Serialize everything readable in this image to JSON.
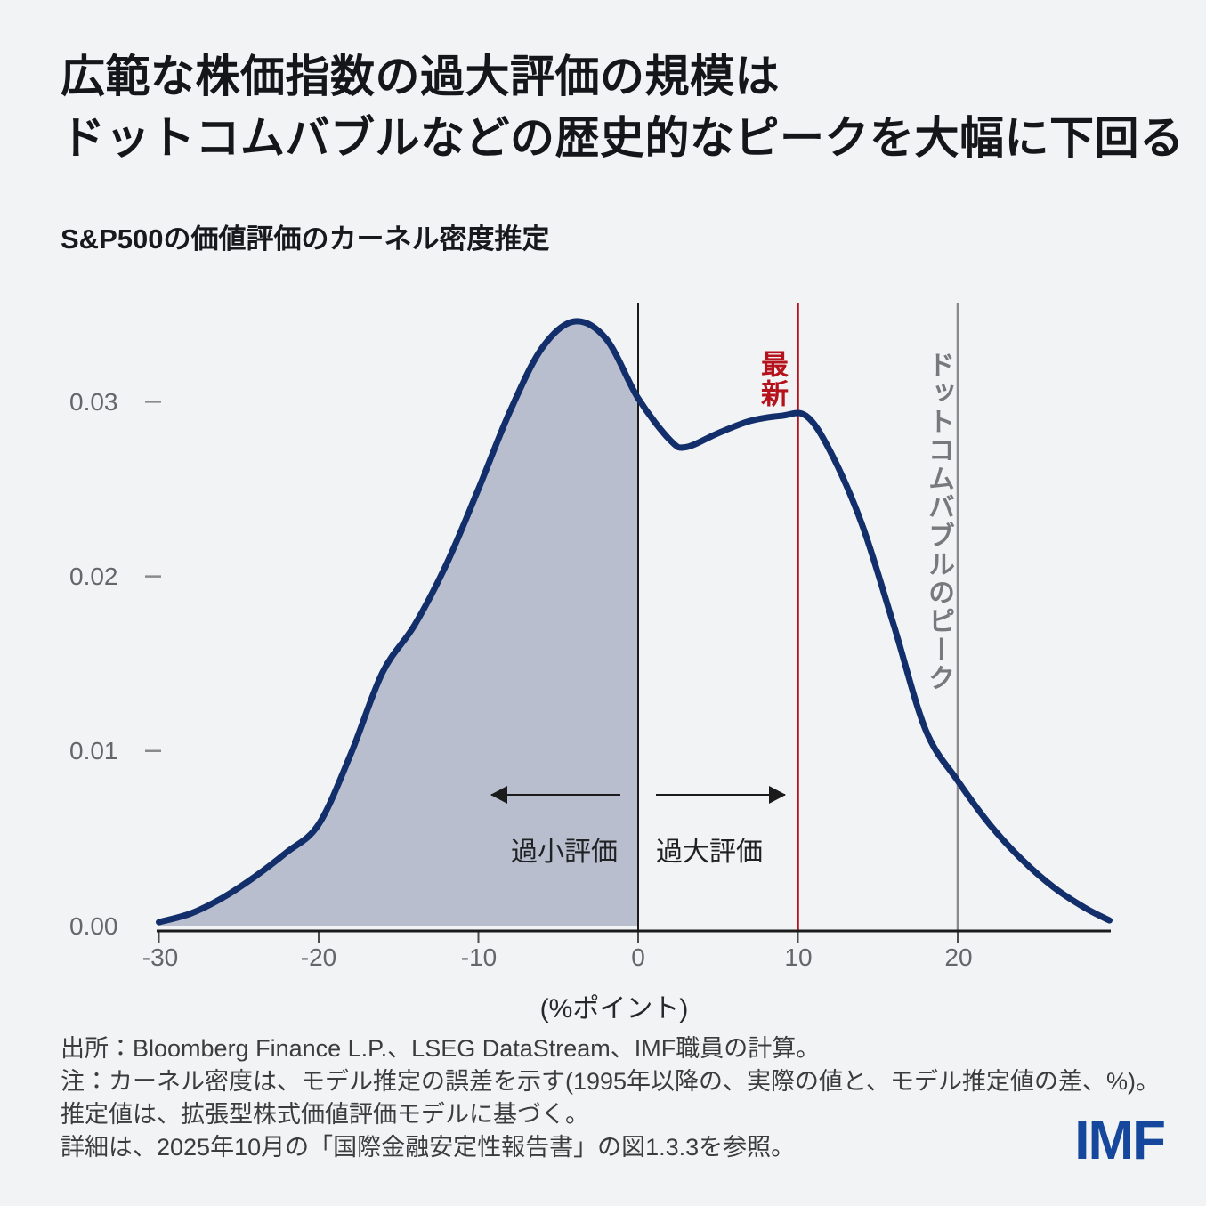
{
  "header": {
    "title_line1": "広範な株価指数の過大評価の規模は",
    "title_line2": "ドットコムバブルなどの歴史的なピークを大幅に下回る",
    "subtitle": "S&P500の価値評価のカーネル密度推定"
  },
  "chart_data": {
    "type": "area",
    "title": "S&P500の価値評価のカーネル密度推定",
    "xlabel": "(%ポイント)",
    "ylabel": "",
    "xlim": [
      -30,
      30
    ],
    "ylim": [
      0,
      0.0357
    ],
    "x_ticks": [
      -30,
      -20,
      -10,
      0,
      10,
      20
    ],
    "y_ticks": [
      0,
      0.01,
      0.02,
      0.03
    ],
    "grid": false,
    "legend_position": "none",
    "series": [
      {
        "name": "カーネル密度",
        "points": [
          [
            -30,
            0.0002
          ],
          [
            -28,
            0.0007
          ],
          [
            -26,
            0.0016
          ],
          [
            -24,
            0.0028
          ],
          [
            -22,
            0.0042
          ],
          [
            -20,
            0.0058
          ],
          [
            -18,
            0.0098
          ],
          [
            -16,
            0.0145
          ],
          [
            -14,
            0.0172
          ],
          [
            -12,
            0.0207
          ],
          [
            -10,
            0.025
          ],
          [
            -8,
            0.0295
          ],
          [
            -6,
            0.0331
          ],
          [
            -4,
            0.0346
          ],
          [
            -2,
            0.0336
          ],
          [
            0,
            0.0302
          ],
          [
            2,
            0.0278
          ],
          [
            3,
            0.0274
          ],
          [
            5,
            0.0282
          ],
          [
            7,
            0.0289
          ],
          [
            9,
            0.0292
          ],
          [
            10.5,
            0.0292
          ],
          [
            12,
            0.0272
          ],
          [
            14,
            0.023
          ],
          [
            16,
            0.0172
          ],
          [
            18,
            0.0112
          ],
          [
            20,
            0.0083
          ],
          [
            22,
            0.0058
          ],
          [
            24,
            0.0038
          ],
          [
            26,
            0.0022
          ],
          [
            28,
            0.001
          ],
          [
            29.5,
            0.0003
          ]
        ]
      }
    ],
    "shaded_region": {
      "x_range": [
        -30,
        0
      ],
      "label": "過小評価",
      "fill": "#B8BECD"
    },
    "annotations": {
      "zero_line": {
        "x": 0,
        "color": "#1B1B1B"
      },
      "latest_line": {
        "x": 10,
        "label": "最新",
        "color": "#B5121B"
      },
      "dotcom_line": {
        "x": 20,
        "label": "ドットコムバブルのピーク",
        "color": "#8A8A8C"
      },
      "left_arrow_label": "過小評価",
      "right_arrow_label": "過大評価"
    },
    "colors": {
      "curve": "#122E6B",
      "fill": "#B8BECD",
      "background": "#F2F3F5"
    }
  },
  "axis": {
    "y_labels": [
      "0.03",
      "0.02",
      "0.01",
      "0.00"
    ],
    "x_labels": [
      "-30",
      "-20",
      "-10",
      "0",
      "10",
      "20"
    ],
    "x_title": "(%ポイント)"
  },
  "footer": {
    "lines": [
      "出所：Bloomberg Finance L.P.、LSEG DataStream、IMF職員の計算。",
      "注：カーネル密度は、モデル推定の誤差を示す(1995年以降の、実際の値と、モデル推定値の差、%)。",
      "推定値は、拡張型株式価値評価モデルに基づく。",
      "詳細は、2025年10月の「国際金融安定性報告書」の図1.3.3を参照。"
    ],
    "logo": "IMF"
  }
}
